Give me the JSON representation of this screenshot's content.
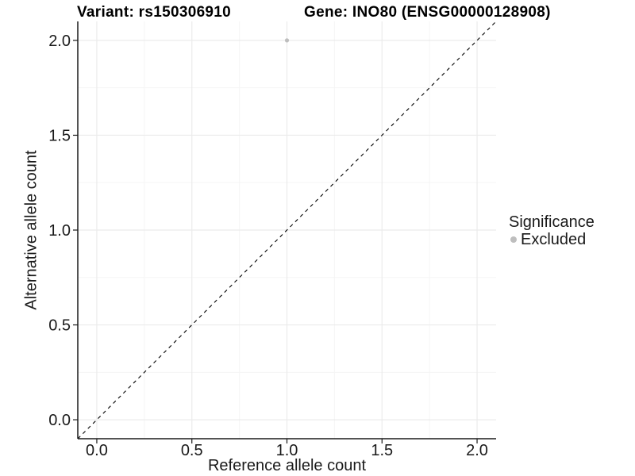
{
  "header": {
    "left_title": "Variant: rs150306910",
    "right_title": "Gene: INO80 (ENSG00000128908)"
  },
  "legend": {
    "title": "Significance",
    "items": [
      {
        "label": "Excluded",
        "color": "#bebebe",
        "marker": "circle"
      }
    ]
  },
  "chart_data": {
    "type": "scatter",
    "title": "Variant: rs150306910   Gene: INO80 (ENSG00000128908)",
    "xlabel": "Reference allele count",
    "ylabel": "Alternative allele count",
    "xlim": [
      -0.1,
      2.1
    ],
    "ylim": [
      -0.1,
      2.1
    ],
    "x_ticks": [
      0.0,
      0.5,
      1.0,
      1.5,
      2.0
    ],
    "x_tick_labels": [
      "0.0",
      "0.5",
      "1.0",
      "1.5",
      "2.0"
    ],
    "y_ticks": [
      0.0,
      0.5,
      1.0,
      1.5,
      2.0
    ],
    "y_tick_labels": [
      "0.0",
      "0.5",
      "1.0",
      "1.5",
      "2.0"
    ],
    "x_minor_ticks": [
      0.25,
      0.75,
      1.25,
      1.75
    ],
    "y_minor_ticks": [
      0.25,
      0.75,
      1.25,
      1.75
    ],
    "grid": "major+minor",
    "legend": {
      "title": "Significance",
      "position": "right",
      "entries": [
        "Excluded"
      ]
    },
    "series": [
      {
        "name": "Excluded",
        "color": "#bebebe",
        "points": [
          {
            "x": 1.0,
            "y": 2.0
          }
        ]
      }
    ],
    "reference_line": {
      "kind": "identity",
      "style": "dashed",
      "color": "#000000",
      "from": [
        -0.1,
        -0.1
      ],
      "to": [
        2.1,
        2.1
      ]
    },
    "colors": {
      "grid_major": "#ebebeb",
      "grid_minor": "#f5f5f5",
      "axis": "#1a1a1a",
      "tick_label": "#1a1a1a",
      "point": "#bebebe"
    }
  }
}
